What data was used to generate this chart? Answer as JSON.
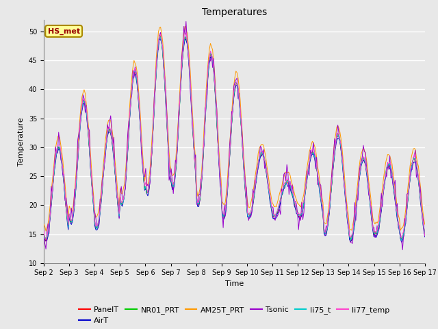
{
  "title": "Temperatures",
  "xlabel": "Time",
  "ylabel": "Temperature",
  "ylim": [
    10,
    52
  ],
  "yticks": [
    10,
    15,
    20,
    25,
    30,
    35,
    40,
    45,
    50
  ],
  "x_labels": [
    "Sep 2",
    "Sep 3",
    "Sep 4",
    "Sep 5",
    "Sep 6",
    "Sep 7",
    "Sep 8",
    "Sep 9",
    "Sep 10",
    "Sep 11",
    "Sep 12",
    "Sep 13",
    "Sep 14",
    "Sep 15",
    "Sep 16",
    "Sep 17"
  ],
  "series_names": [
    "PanelT",
    "AirT",
    "NR01_PRT",
    "AM25T_PRT",
    "Tsonic",
    "li75_t",
    "li77_temp"
  ],
  "series_colors": [
    "#ff0000",
    "#0000cc",
    "#00cc00",
    "#ff9900",
    "#9900cc",
    "#00cccc",
    "#ff44cc"
  ],
  "annotation_text": "HS_met",
  "annotation_color": "#990000",
  "annotation_bg": "#ffff99",
  "annotation_border": "#aa8800",
  "plot_bg": "#e8e8e8",
  "fig_bg": "#e8e8e8",
  "grid_color": "#ffffff",
  "title_fontsize": 10,
  "axis_fontsize": 8,
  "tick_fontsize": 7,
  "legend_fontsize": 8,
  "peak_temps": [
    30,
    38,
    33,
    43,
    49,
    49,
    46,
    41,
    29,
    24,
    29,
    32,
    28,
    27,
    28
  ],
  "base_temps": [
    14,
    17,
    16,
    20,
    22,
    23,
    20,
    18,
    18,
    18,
    18,
    15,
    14,
    15,
    14
  ],
  "n_days": 15,
  "n_points": 360
}
